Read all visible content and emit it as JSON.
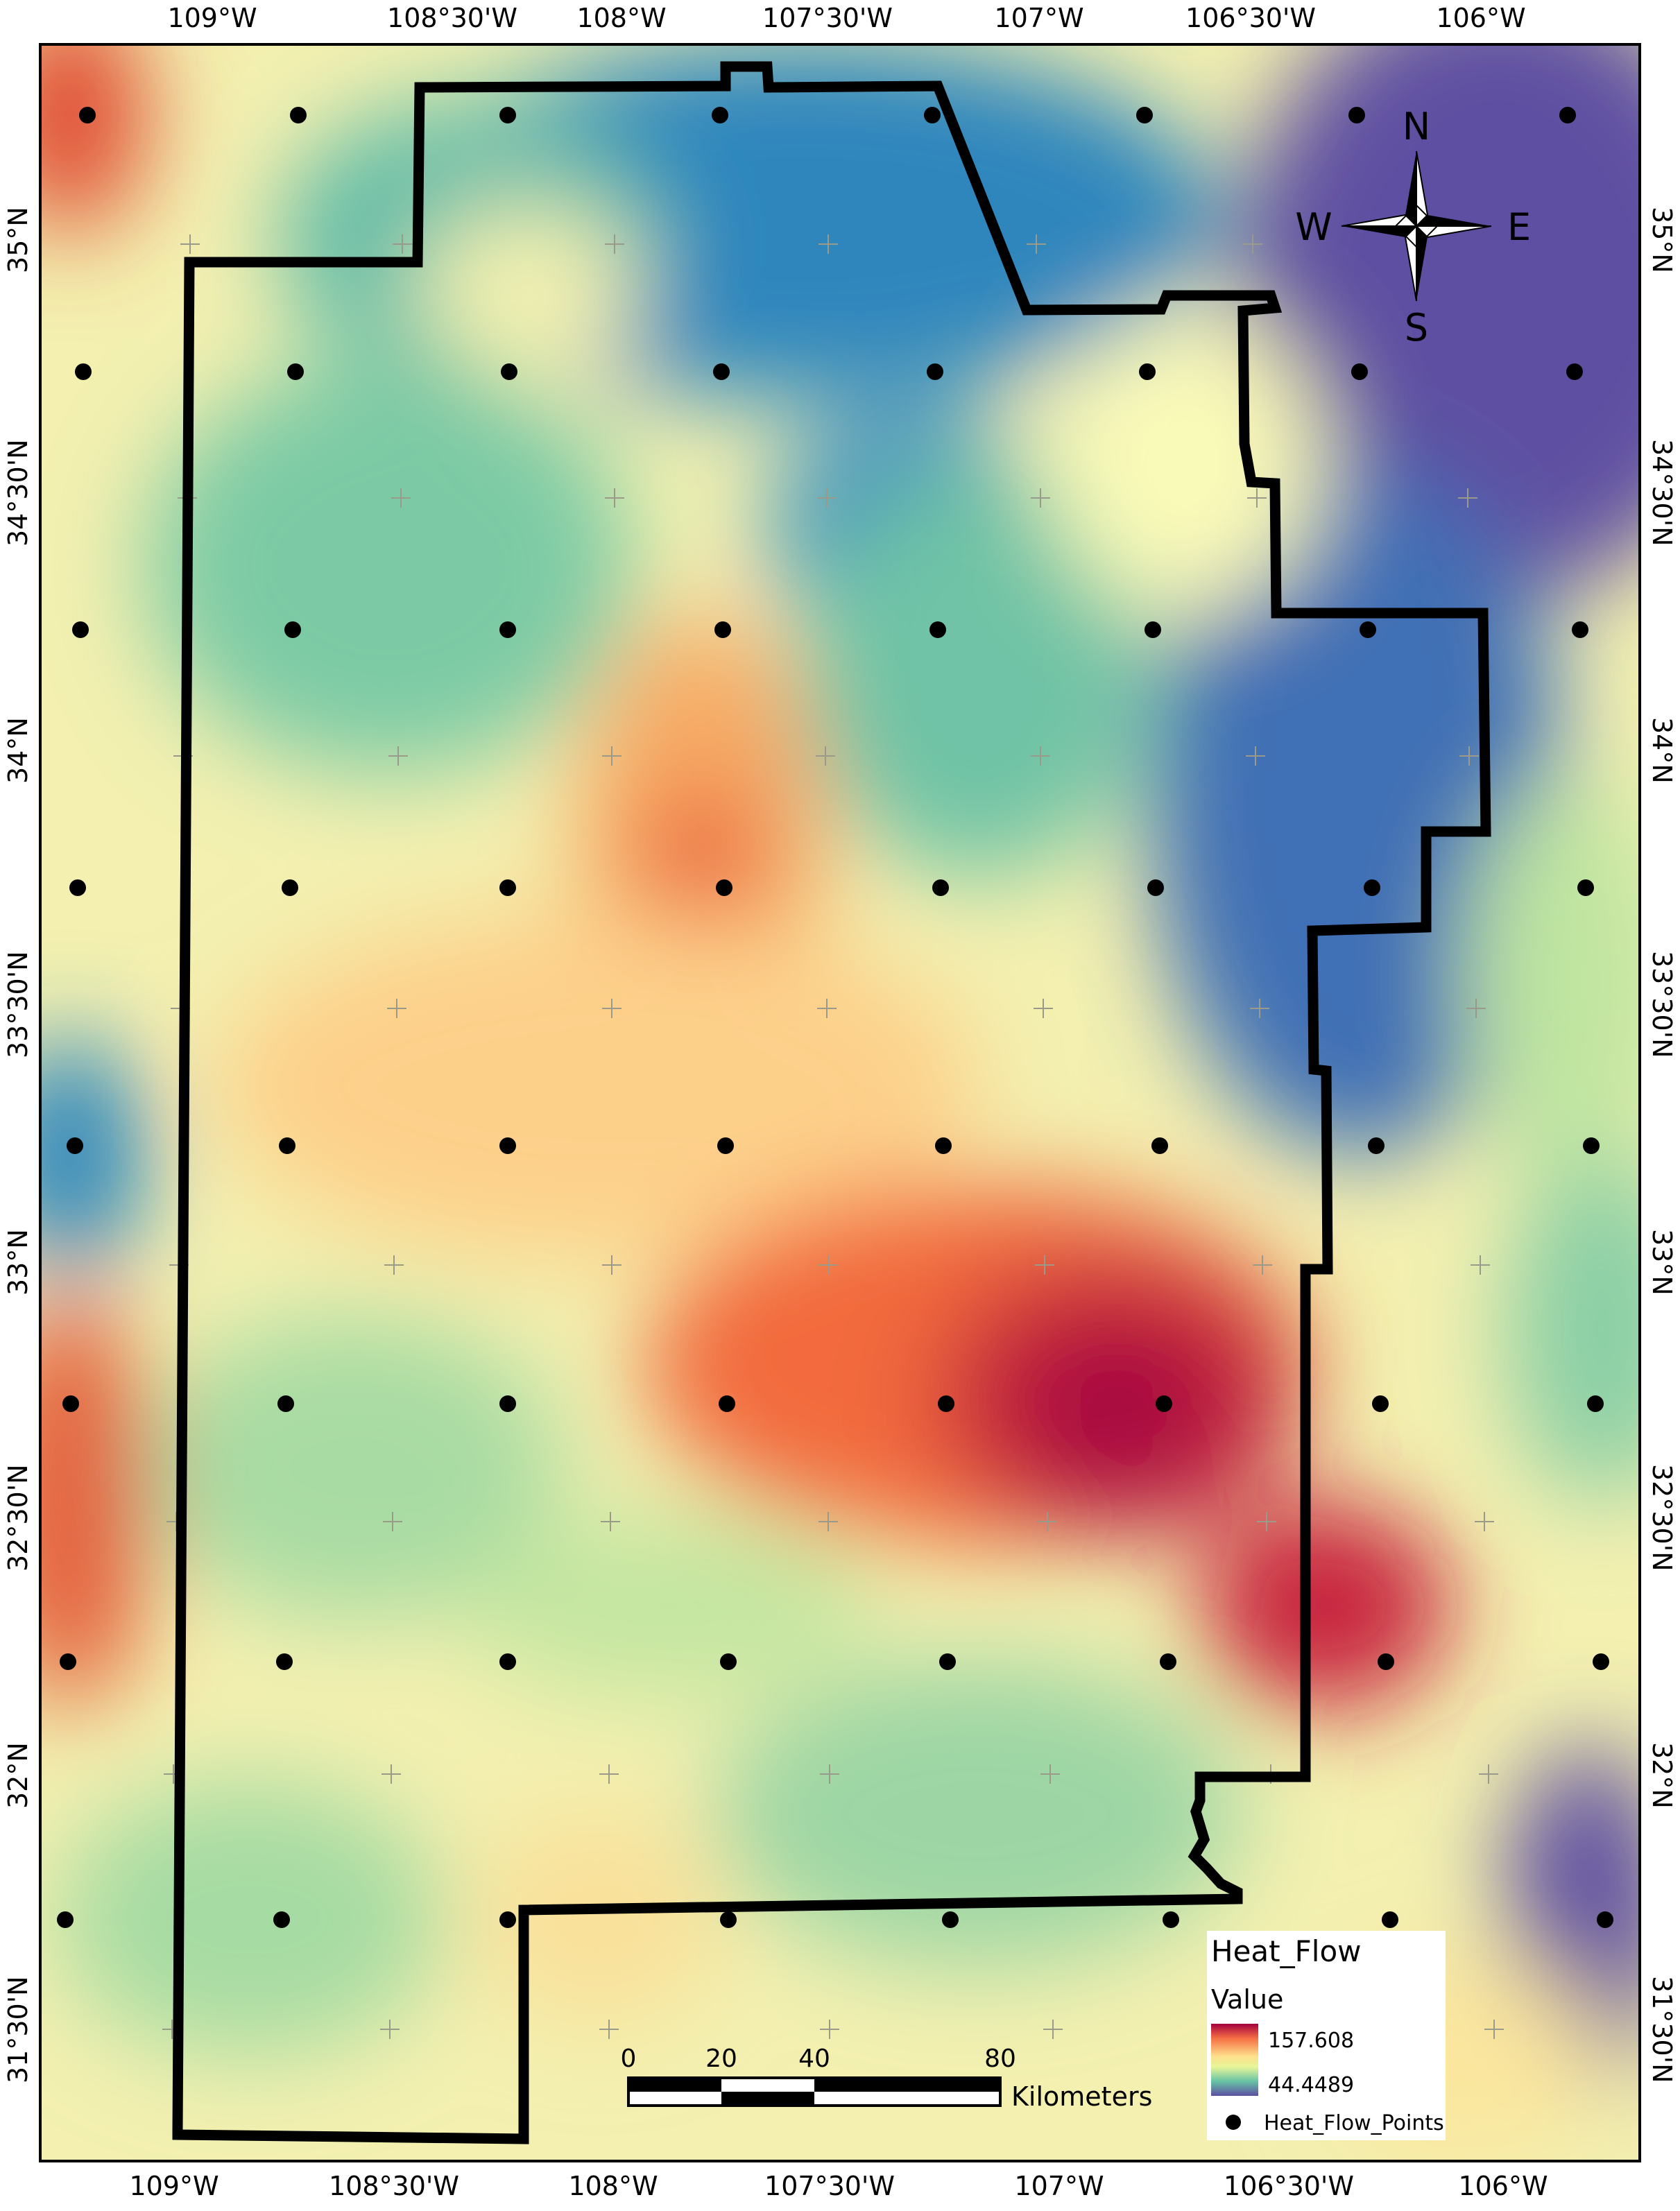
{
  "map": {
    "top_axis_labels": [
      "109°W",
      "108°30'W",
      "108°W",
      "107°30'W",
      "107°W",
      "106°30'W",
      "106°W"
    ],
    "bottom_axis_labels": [
      "109°W",
      "108°30'W",
      "108°W",
      "107°30'W",
      "107°W",
      "106°30'W",
      "106°W"
    ],
    "left_axis_labels": [
      "35°N",
      "34°30'N",
      "34°N",
      "33°30'N",
      "33°N",
      "32°30'N",
      "32°N",
      "31°30'N"
    ],
    "right_axis_labels": [
      "35°N",
      "34°30'N",
      "34°N",
      "33°30'N",
      "33°N",
      "32°30'N",
      "32°N",
      "31°30'N"
    ],
    "north_arrow": {
      "n": "N",
      "s": "S",
      "e": "E",
      "w": "W"
    },
    "scale_bar": {
      "ticks": [
        "0",
        "20",
        "40",
        "80"
      ],
      "unit": "Kilometers"
    },
    "legend": {
      "title": "Heat_Flow",
      "subtitle": "Value",
      "max": "157.608",
      "min": "44.4489",
      "points_label": "Heat_Flow_Points",
      "ramp_colors": [
        "#a3003f",
        "#e8452c",
        "#f98e52",
        "#fdd487",
        "#feffbe",
        "#b6e2a2",
        "#5fbba8",
        "#2f86bd",
        "#5e4fa2"
      ]
    }
  }
}
